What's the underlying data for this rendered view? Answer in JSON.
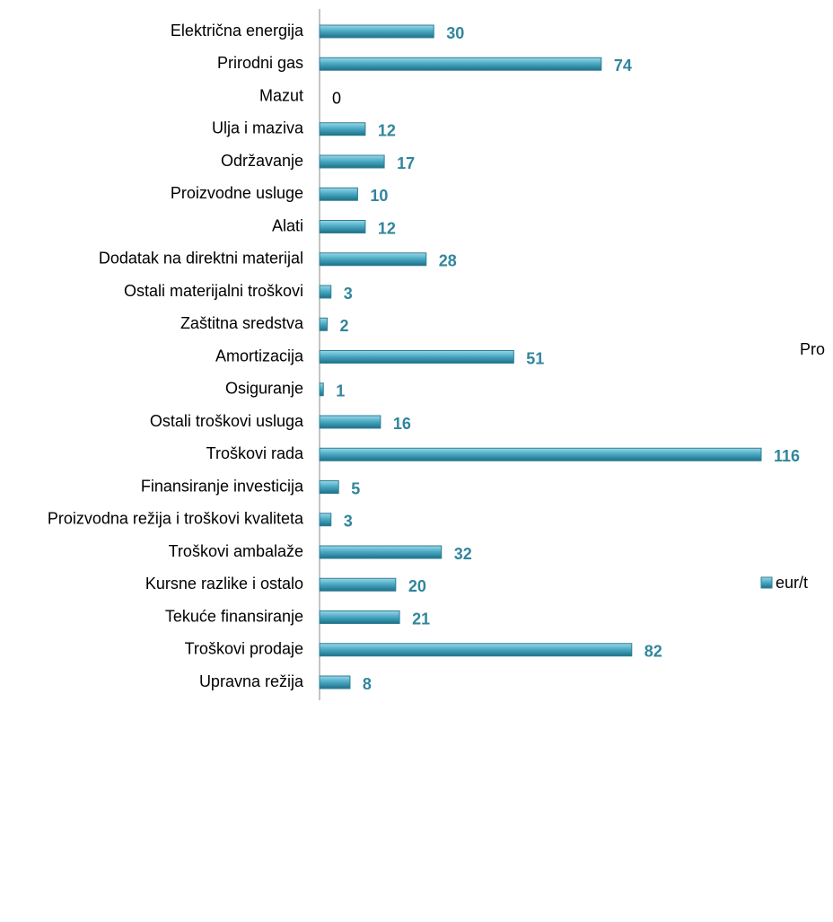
{
  "chart_data": {
    "type": "bar",
    "orientation": "horizontal",
    "categories": [
      "Električna energija",
      "Prirodni gas",
      "Mazut",
      "Ulja i maziva",
      "Održavanje",
      "Proizvodne usluge",
      "Alati",
      "Dodatak na direktni materijal",
      "Ostali materijalni troškovi",
      "Zaštitna sredstva",
      "Amortizacija",
      "Osiguranje",
      "Ostali troškovi usluga",
      "Troškovi rada",
      "Finansiranje investicija",
      "Proizvodna režija i troškovi kvaliteta",
      "Troškovi ambalaže",
      "Kursne razlike i ostalo",
      "Tekuće finansiranje",
      "Troškovi prodaje",
      "Upravna režija"
    ],
    "series": [
      {
        "name": "eur/t",
        "color": "#4bacc6",
        "values": [
          30,
          74,
          0,
          12,
          17,
          10,
          12,
          28,
          3,
          2,
          51,
          1,
          16,
          116,
          5,
          3,
          32,
          20,
          21,
          82,
          8
        ]
      }
    ],
    "annotations": [
      "Pro"
    ]
  }
}
